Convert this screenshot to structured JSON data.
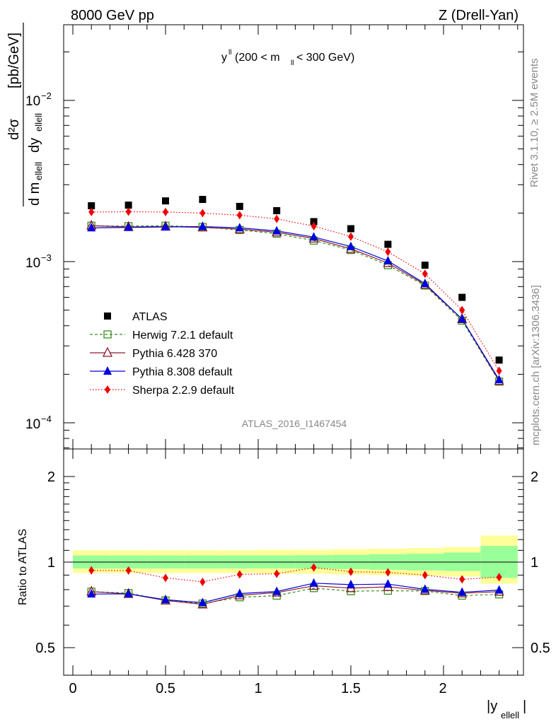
{
  "header": {
    "energy_label": "8000 GeV pp",
    "process_label": "Z (Drell-Yan)",
    "rivet_label": "Rivet 3.1.10, ≥ 2.5M events",
    "mcplots_label": "mcplots.cern.ch [arXiv:1306.3436]",
    "analysis_label": "ATLAS_2016_I1467454"
  },
  "plot_title": {
    "main": "y",
    "main_sup": "ll",
    "range_open": " (200 < m",
    "range_sub": "ll",
    "range_close": " < 300 GeV)"
  },
  "y_axis_label": {
    "d2sigma": "d²σ",
    "denominator": "d m",
    "den_sub": "ellell",
    "den_dy": " dy",
    "den_sub2": "ellell",
    "unit": "[pb/GeV]"
  },
  "ratio_axis_label": "Ratio to ATLAS",
  "x_axis_label": {
    "main": "|y",
    "sub": "ellell",
    "close": "|"
  },
  "tick_labels": {
    "x": [
      "0",
      "0.5",
      "1",
      "1.5",
      "2"
    ],
    "main_y_pow": [
      "−2",
      "−3",
      "−4"
    ],
    "main_y_base": "10",
    "ratio_y": [
      "2",
      "1",
      "0.5"
    ]
  },
  "legend": [
    {
      "key": "atlas",
      "label": "ATLAS"
    },
    {
      "key": "herwig",
      "label": "Herwig 7.2.1 default"
    },
    {
      "key": "pythia6",
      "label": "Pythia 6.428 370"
    },
    {
      "key": "pythia8",
      "label": "Pythia 8.308 default"
    },
    {
      "key": "sherpa",
      "label": "Sherpa 2.2.9 default"
    }
  ],
  "colors": {
    "atlas": "#000000",
    "herwig": "#3a8d1c",
    "pythia6": "#8b1a2a",
    "pythia8": "#0000e0",
    "sherpa": "#ee0000",
    "band_outer": "#ffff99",
    "band_inner": "#99ff99"
  },
  "chart_data": [
    {
      "type": "scatter",
      "title": "y^ll (200 < m_ll < 300 GeV)",
      "xlabel": "|y_ellell|",
      "ylabel": "d²σ / d m_ellell dy_ellell [pb/GeV]",
      "yscale": "log",
      "xlim": [
        -0.1,
        2.44
      ],
      "ylim": [
        7e-05,
        0.03
      ],
      "legend_position": "bottom-left",
      "x": [
        0.1,
        0.3,
        0.5,
        0.7,
        0.9,
        1.1,
        1.3,
        1.5,
        1.7,
        1.9,
        2.1,
        2.3
      ],
      "series": [
        {
          "name": "ATLAS",
          "key": "atlas",
          "marker": "square",
          "values": [
            0.00222,
            0.00224,
            0.00238,
            0.00243,
            0.0022,
            0.00207,
            0.00177,
            0.0016,
            0.00128,
            0.00095,
            0.0006,
            0.000245
          ]
        },
        {
          "name": "Herwig 7.2.1 default",
          "key": "herwig",
          "marker": "open-square",
          "line": "dashed",
          "values": [
            0.00167,
            0.00166,
            0.00167,
            0.00164,
            0.00157,
            0.00149,
            0.00135,
            0.00118,
            0.00095,
            0.00071,
            0.00043,
            0.00018
          ]
        },
        {
          "name": "Pythia 6.428 370",
          "key": "pythia6",
          "marker": "open-triangle",
          "line": "solid",
          "values": [
            0.00167,
            0.00164,
            0.00165,
            0.00163,
            0.00159,
            0.00152,
            0.00139,
            0.0012,
            0.00098,
            0.00072,
            0.00044,
            0.000182
          ]
        },
        {
          "name": "Pythia 8.308 default",
          "key": "pythia8",
          "marker": "triangle",
          "line": "solid",
          "values": [
            0.00162,
            0.00163,
            0.00164,
            0.00165,
            0.00162,
            0.00155,
            0.00142,
            0.00124,
            0.00101,
            0.00073,
            0.00044,
            0.000185
          ]
        },
        {
          "name": "Sherpa 2.2.9 default",
          "key": "sherpa",
          "marker": "diamond",
          "line": "dotted",
          "values": [
            0.00203,
            0.00204,
            0.00203,
            0.002,
            0.00194,
            0.00184,
            0.00166,
            0.00143,
            0.00115,
            0.00084,
            0.0005,
            0.00021
          ]
        }
      ]
    },
    {
      "type": "scatter",
      "title": "",
      "xlabel": "|y_ellell|",
      "ylabel": "Ratio to ATLAS",
      "yscale": "log",
      "xlim": [
        -0.1,
        2.44
      ],
      "ylim": [
        0.4,
        2.5
      ],
      "x": [
        0.1,
        0.3,
        0.5,
        0.7,
        0.9,
        1.1,
        1.3,
        1.5,
        1.7,
        1.9,
        2.1,
        2.3
      ],
      "bands": {
        "edges": [
          0.0,
          0.2,
          0.4,
          0.6,
          0.8,
          1.0,
          1.2,
          1.4,
          1.6,
          1.8,
          2.0,
          2.2,
          2.4
        ],
        "outer": [
          [
            0.915,
            1.1
          ],
          [
            0.915,
            1.1
          ],
          [
            0.915,
            1.1
          ],
          [
            0.915,
            1.1
          ],
          [
            0.915,
            1.1
          ],
          [
            0.91,
            1.105
          ],
          [
            0.91,
            1.105
          ],
          [
            0.905,
            1.11
          ],
          [
            0.9,
            1.115
          ],
          [
            0.895,
            1.12
          ],
          [
            0.89,
            1.13
          ],
          [
            0.84,
            1.24
          ]
        ],
        "inner": [
          [
            0.95,
            1.055
          ],
          [
            0.95,
            1.055
          ],
          [
            0.95,
            1.055
          ],
          [
            0.95,
            1.055
          ],
          [
            0.95,
            1.055
          ],
          [
            0.95,
            1.055
          ],
          [
            0.948,
            1.058
          ],
          [
            0.945,
            1.06
          ],
          [
            0.94,
            1.065
          ],
          [
            0.935,
            1.07
          ],
          [
            0.93,
            1.08
          ],
          [
            0.88,
            1.14
          ]
        ]
      },
      "series": [
        {
          "name": "Herwig 7.2.1 default",
          "key": "herwig",
          "marker": "open-square",
          "line": "dashed",
          "values": [
            0.787,
            0.778,
            0.733,
            0.715,
            0.752,
            0.762,
            0.81,
            0.79,
            0.793,
            0.791,
            0.762,
            0.77
          ]
        },
        {
          "name": "Pythia 6.428 370",
          "key": "pythia6",
          "marker": "open-triangle",
          "line": "solid",
          "values": [
            0.787,
            0.773,
            0.733,
            0.71,
            0.764,
            0.781,
            0.825,
            0.81,
            0.818,
            0.795,
            0.777,
            0.787
          ]
        },
        {
          "name": "Pythia 8.308 default",
          "key": "pythia8",
          "marker": "triangle",
          "line": "solid",
          "values": [
            0.772,
            0.773,
            0.737,
            0.72,
            0.775,
            0.788,
            0.843,
            0.833,
            0.837,
            0.802,
            0.783,
            0.797
          ]
        },
        {
          "name": "Sherpa 2.2.9 default",
          "key": "sherpa",
          "marker": "diamond",
          "line": "dotted",
          "values": [
            0.935,
            0.934,
            0.88,
            0.852,
            0.905,
            0.91,
            0.957,
            0.925,
            0.92,
            0.9,
            0.87,
            0.885
          ]
        }
      ]
    }
  ]
}
